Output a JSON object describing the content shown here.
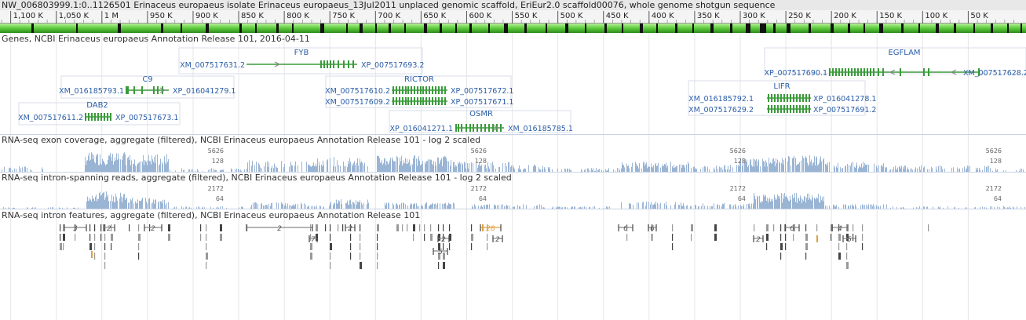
{
  "title": "NW_006803999.1:0..1126501 Erinaceus europaeus isolate Erinaceus europaeus_13Jul2011 unplaced genomic scaffold, EriEur2.0 scaffold00076, whole genome shotgun sequence",
  "ruler": {
    "ticks": [
      {
        "label": "1,100 K",
        "pos": 1100
      },
      {
        "label": "1,050 K",
        "pos": 1050
      },
      {
        "label": "1 M",
        "pos": 1000
      },
      {
        "label": "950 K",
        "pos": 950
      },
      {
        "label": "900 K",
        "pos": 900
      },
      {
        "label": "850 K",
        "pos": 850
      },
      {
        "label": "800 K",
        "pos": 800
      },
      {
        "label": "750 K",
        "pos": 750
      },
      {
        "label": "700 K",
        "pos": 700
      },
      {
        "label": "650 K",
        "pos": 650
      },
      {
        "label": "600 K",
        "pos": 600
      },
      {
        "label": "550 K",
        "pos": 550
      },
      {
        "label": "500 K",
        "pos": 500
      },
      {
        "label": "450 K",
        "pos": 450
      },
      {
        "label": "400 K",
        "pos": 400
      },
      {
        "label": "350 K",
        "pos": 350
      },
      {
        "label": "300 K",
        "pos": 300
      },
      {
        "label": "250 K",
        "pos": 250
      },
      {
        "label": "200 K",
        "pos": 200
      },
      {
        "label": "150 K",
        "pos": 150
      },
      {
        "label": "100 K",
        "pos": 100
      },
      {
        "label": "50 K",
        "pos": 50
      }
    ]
  },
  "tracks": {
    "genes_title": "Genes, NCBI Erinaceus europaeus Annotation Release 101, 2016-04-11",
    "exon_title": "RNA-seq exon coverage, aggregate (filtered), NCBI Erinaceus europaeus Annotation Release 101 - log 2 scaled",
    "intron_reads_title": "RNA-seq intron-spanning reads, aggregate (filtered), NCBI Erinaceus europaeus Annotation Release 101 - log 2 scaled",
    "intron_features_title": "RNA-seq intron features, aggregate (filtered), NCBI Erinaceus europaeus Annotation Release 101"
  },
  "genes": [
    {
      "name": "FYB",
      "left": "XM_007517631.2",
      "right": "XP_007517693.2"
    },
    {
      "name": "C9",
      "left": "XM_016185793.1",
      "right": "XP_016041279.1"
    },
    {
      "name": "DAB2",
      "left": "XM_007517611.2",
      "right": "XP_007517673.1"
    },
    {
      "name": "RICTOR",
      "left": "XM_007517610.2",
      "right": "XP_007517672.1"
    },
    {
      "name": "RICTOR",
      "left": "XM_007517609.2",
      "right": "XP_007517671.1"
    },
    {
      "name": "OSMR",
      "left": "XP_016041271.1",
      "right": "XM_016185785.1"
    },
    {
      "name": "EGFLAM",
      "left": "XP_007517690.1",
      "right": "XM_007517628.2"
    },
    {
      "name": "LIFR",
      "left": "XM_016185792.1",
      "right": "XP_016041278.1"
    },
    {
      "name": "LIFR",
      "left": "XM_007517629.2",
      "right": "XP_007517691.2"
    }
  ],
  "exon_scale": {
    "max": "5626",
    "mid": "128"
  },
  "intron_scale": {
    "max": "2172",
    "mid": "64"
  },
  "feature_counts": [
    "3",
    "2",
    "2",
    "2",
    "7",
    "2",
    "2",
    "5",
    "28",
    "2",
    "6",
    "6",
    "2",
    "6",
    "4",
    "5"
  ],
  "colors": {
    "gene": "#3a9a3a",
    "label": "#2a5da8",
    "coverage": "#9ab4d4",
    "seq": "#5ccb3c",
    "highlight": "#e0a040"
  }
}
